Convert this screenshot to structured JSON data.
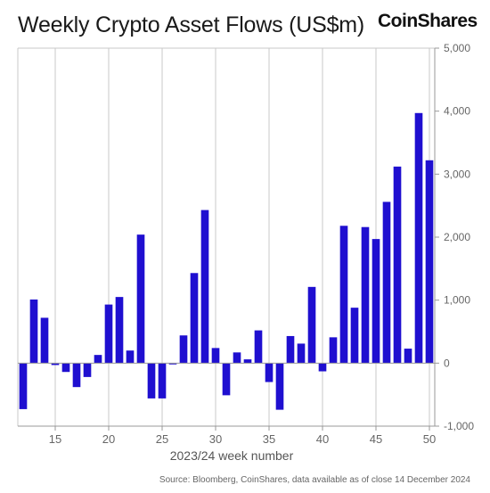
{
  "title": "Weekly Crypto Asset Flows (US$m)",
  "brand": "CoinShares",
  "source": "Source: Bloomberg, CoinShares, data available as of close 14 December 2024",
  "colors": {
    "bar": "#1f0fd0",
    "grid": "#c8c8c8",
    "axis": "#999999",
    "tick": "#666666"
  },
  "chart_data": {
    "type": "bar",
    "title": "Weekly Crypto Asset Flows (US$m)",
    "xlabel": "2023/24 week number",
    "ylabel": "",
    "x": [
      12,
      13,
      14,
      15,
      16,
      17,
      18,
      19,
      20,
      21,
      22,
      23,
      24,
      25,
      26,
      27,
      28,
      29,
      30,
      31,
      32,
      33,
      34,
      35,
      36,
      37,
      38,
      39,
      40,
      41,
      42,
      43,
      44,
      45,
      46,
      47,
      48,
      49,
      50
    ],
    "values": [
      -730,
      1010,
      720,
      -30,
      -140,
      -380,
      -220,
      130,
      930,
      1050,
      200,
      2040,
      -560,
      -560,
      -20,
      440,
      1430,
      2430,
      240,
      -510,
      170,
      60,
      520,
      -300,
      -740,
      430,
      310,
      1210,
      -130,
      410,
      2180,
      880,
      2160,
      1970,
      2560,
      3120,
      230,
      3970,
      3220
    ],
    "xticks": [
      15,
      20,
      25,
      30,
      35,
      40,
      45,
      50
    ],
    "yticks": [
      -1000,
      0,
      1000,
      2000,
      3000,
      4000,
      5000
    ],
    "ytick_labels": [
      "-1,000",
      "0",
      "1,000",
      "2,000",
      "3,000",
      "4,000",
      "5,000"
    ],
    "ylim": [
      -1000,
      5000
    ],
    "xlim": [
      11.5,
      50.5
    ],
    "grid": "vertical lines at x ticks",
    "y_axis_position": "right"
  }
}
